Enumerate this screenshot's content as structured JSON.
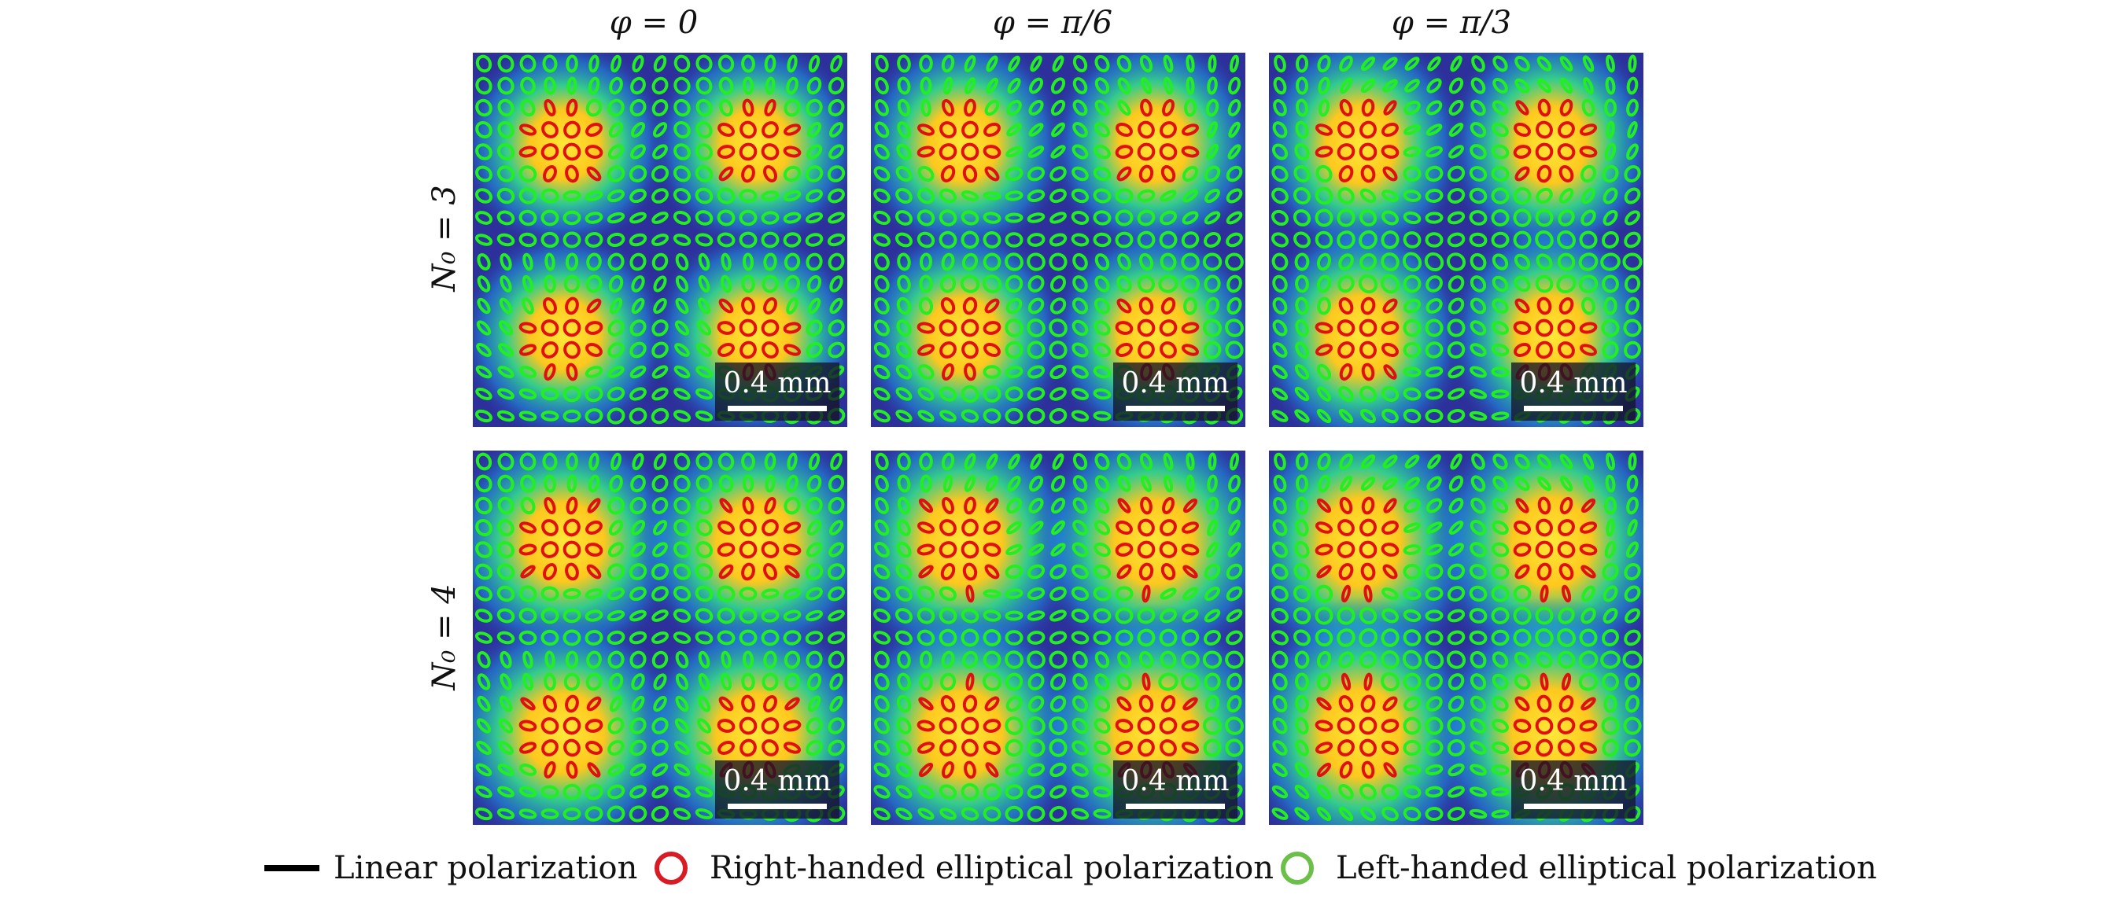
{
  "columns": [
    {
      "label": "φ = 0",
      "phase": 0
    },
    {
      "label": "φ = π/6",
      "phase": 0.5236
    },
    {
      "label": "φ = π/3",
      "phase": 1.0472
    }
  ],
  "rows": [
    {
      "label": "N₀ = 3",
      "n0": 3
    },
    {
      "label": "N₀ = 4",
      "n0": 4
    }
  ],
  "scale_bar_label": "0.4 mm",
  "legend": {
    "linear": "Linear polarization",
    "right": "Right-handed elliptical polarization",
    "left": "Left-handed elliptical polarization"
  },
  "colors": {
    "right_handed": "#e01010",
    "left_handed": "#22ee22",
    "legend_right": "#d81b24",
    "legend_left": "#6cc04a",
    "linear": "#000000"
  },
  "grid_size": 17
}
